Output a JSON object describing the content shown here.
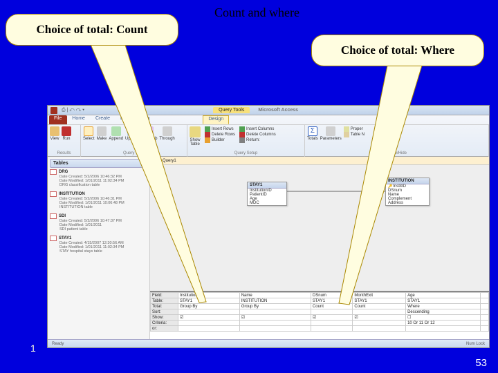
{
  "slide": {
    "title": "Count and where",
    "callout_left": "Choice of total: Count",
    "callout_right": "Choice of total: Where",
    "footnote": "1",
    "page_number": "53"
  },
  "callout_colors": {
    "bg": "#fffde0",
    "border": "#aa8800"
  },
  "pointer_colors": {
    "fill": "#fffde0",
    "stroke": "#aa8800"
  },
  "app": {
    "title_context": "Query Tools",
    "title_name": "Microsoft Access",
    "qat": "⎙ | ↶ ↷ ▾",
    "tabs": {
      "file": "File",
      "home": "Home",
      "create": "Create",
      "external": "External Data",
      "design": "Design"
    },
    "ribbon": {
      "results": {
        "label": "Results",
        "view": "View",
        "run": "Run"
      },
      "query_type": {
        "label": "Query Type",
        "select": "Select",
        "make": "Make",
        "append": "Append",
        "update": "Update",
        "crosstab": "Crosstab",
        "through": "Through"
      },
      "query_setup": {
        "label": "Query Setup",
        "show_table": "Show\nTable",
        "insert_rows": "Insert Rows",
        "delete_rows": "Delete Rows",
        "builder": "Builder",
        "insert_cols": "Insert Columns",
        "delete_cols": "Delete Columns",
        "return": "Return:"
      },
      "show_hide": {
        "label": "Show/Hide",
        "totals": "Totals",
        "parameters": "Parameters",
        "prop": "Proper",
        "table_names": "Table N"
      }
    },
    "nav": {
      "header": "Tables",
      "items": [
        {
          "name": "DRG",
          "created": "Date Created: 5/2/2006 10:46:32 PM",
          "modified": "Date Modified: 1/01/2011 11:02:34 PM",
          "desc": "DRG classification table"
        },
        {
          "name": "INSTITUTION",
          "created": "Date Created: 5/2/2006 10:46:31 PM",
          "modified": "Date Modified: 1/01/2011 10:06:48 PM",
          "desc": "INSTITUTION table"
        },
        {
          "name": "SDI",
          "created": "Date Created: 5/2/2006 10:47:37 PM",
          "modified": "Date Modified: 1/01/2011",
          "desc": "SDI patient table"
        },
        {
          "name": "STAY1",
          "created": "Date Created: 4/15/2007 12:30:56 AM",
          "modified": "Date Modified: 1/01/2011 11:02:34 PM",
          "desc": "STAY hospital stays table"
        }
      ]
    },
    "doc_tab": "Query1",
    "tables": {
      "stay": {
        "title": "STAY1",
        "fields": [
          "InstitutionID",
          "PatientID",
          "Age",
          "MDC"
        ]
      },
      "inst": {
        "title": "INSTITUTION",
        "fields": [
          "InstitID",
          "DSnum",
          "Name",
          "Complement",
          "Address"
        ]
      }
    },
    "grid": {
      "rows": [
        "Field:",
        "Table:",
        "Total:",
        "Sort:",
        "Show:",
        "Criteria:",
        "or:"
      ],
      "cols": [
        {
          "field": "InstitutionID",
          "table": "STAY1",
          "total": "Group By",
          "sort": "",
          "show": "☑",
          "crit": "",
          "or": ""
        },
        {
          "field": "Name",
          "table": "INSTITUTION",
          "total": "Group By",
          "sort": "",
          "show": "☑",
          "crit": "",
          "or": ""
        },
        {
          "field": "DSnum",
          "table": "STAY1",
          "total": "Count",
          "sort": "",
          "show": "☑",
          "crit": "",
          "or": ""
        },
        {
          "field": "MonthExit",
          "table": "STAY1",
          "total": "Count",
          "sort": "",
          "show": "☑",
          "crit": "",
          "or": ""
        },
        {
          "field": "Age",
          "table": "STAY1",
          "total": "Where",
          "sort": "Descending",
          "show": "☐",
          "crit": "10 Or 11 Or 12",
          "or": ""
        }
      ]
    },
    "status": {
      "left": "Ready",
      "right": "Num Lock"
    }
  },
  "colors": {
    "icon_view": "#e8c070",
    "icon_run": "#c03030",
    "icon_select": "#e8a030",
    "icon_make": "#808080",
    "icon_append": "#50a050",
    "icon_update": "#3060c0",
    "icon_crosstab": "#a060c0",
    "icon_through": "#707070",
    "icon_totals": "#3060c0",
    "icon_params": "#707070"
  }
}
